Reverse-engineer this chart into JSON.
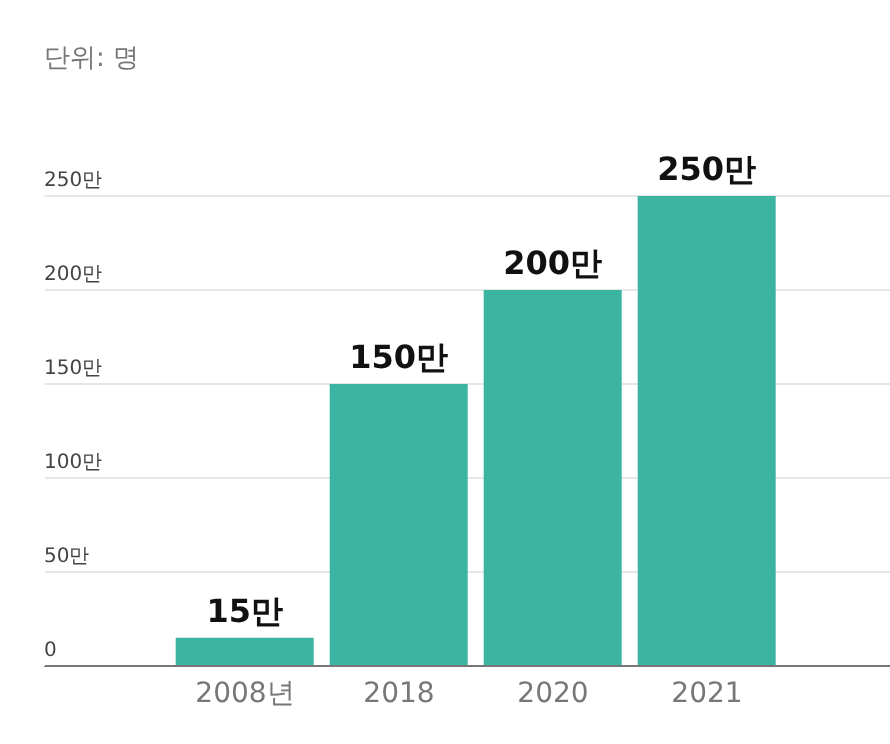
{
  "chart_data": {
    "type": "bar",
    "subtitle": "단위: 명",
    "categories": [
      "2008년",
      "2018",
      "2020",
      "2021"
    ],
    "values": [
      15,
      150,
      200,
      250
    ],
    "color": "#3bb5a2",
    "value_labels": [
      "15만",
      "150만",
      "200만",
      "250만"
    ],
    "ylim": [
      0,
      250
    ],
    "yticks": [
      0,
      {
        "value": 50,
        "label": "50만"
      },
      {
        "value": 100,
        "label": "100만"
      },
      {
        "value": 150,
        "label": "150만"
      },
      {
        "value": 200,
        "label": "200만"
      },
      {
        "value": 250,
        "label": "250만"
      }
    ],
    "grid": "y"
  }
}
